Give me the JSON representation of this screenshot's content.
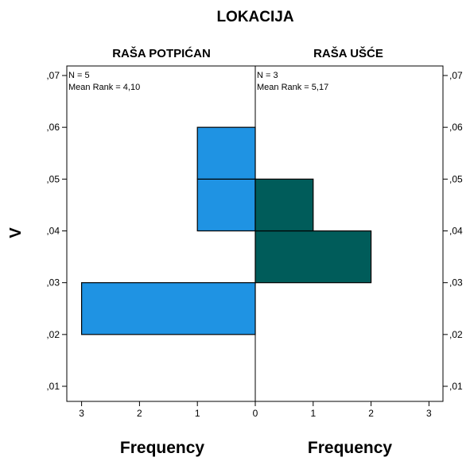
{
  "chart_data": {
    "type": "bar",
    "subtype": "back-to-back histogram",
    "title": "LOKACIJA",
    "ylabel": "V",
    "y_ticks": [
      ",01",
      ",02",
      ",03",
      ",04",
      ",05",
      ",06",
      ",07"
    ],
    "ylim": [
      0.01,
      0.07
    ],
    "bin_width": 0.01,
    "x_ticks": [
      "3",
      "2",
      "1",
      "0",
      "1",
      "2",
      "3"
    ],
    "xlim": [
      0,
      3
    ],
    "panels": [
      {
        "name": "RAŠA POTPIĆAN",
        "side": "left",
        "color": "#1f93e3",
        "n_label": "N = 5",
        "mean_rank_label": "Mean Rank = 4,10",
        "xlabel": "Frequency",
        "bins": [
          {
            "start": 0.02,
            "end": 0.03,
            "value": 3
          },
          {
            "start": 0.04,
            "end": 0.05,
            "value": 1
          },
          {
            "start": 0.05,
            "end": 0.06,
            "value": 1
          }
        ]
      },
      {
        "name": "RAŠA UŠĆE",
        "side": "right",
        "color": "#005c5a",
        "n_label": "N = 3",
        "mean_rank_label": "Mean Rank = 5,17",
        "xlabel": "Frequency",
        "bins": [
          {
            "start": 0.03,
            "end": 0.04,
            "value": 2
          },
          {
            "start": 0.04,
            "end": 0.05,
            "value": 1
          }
        ]
      }
    ]
  }
}
